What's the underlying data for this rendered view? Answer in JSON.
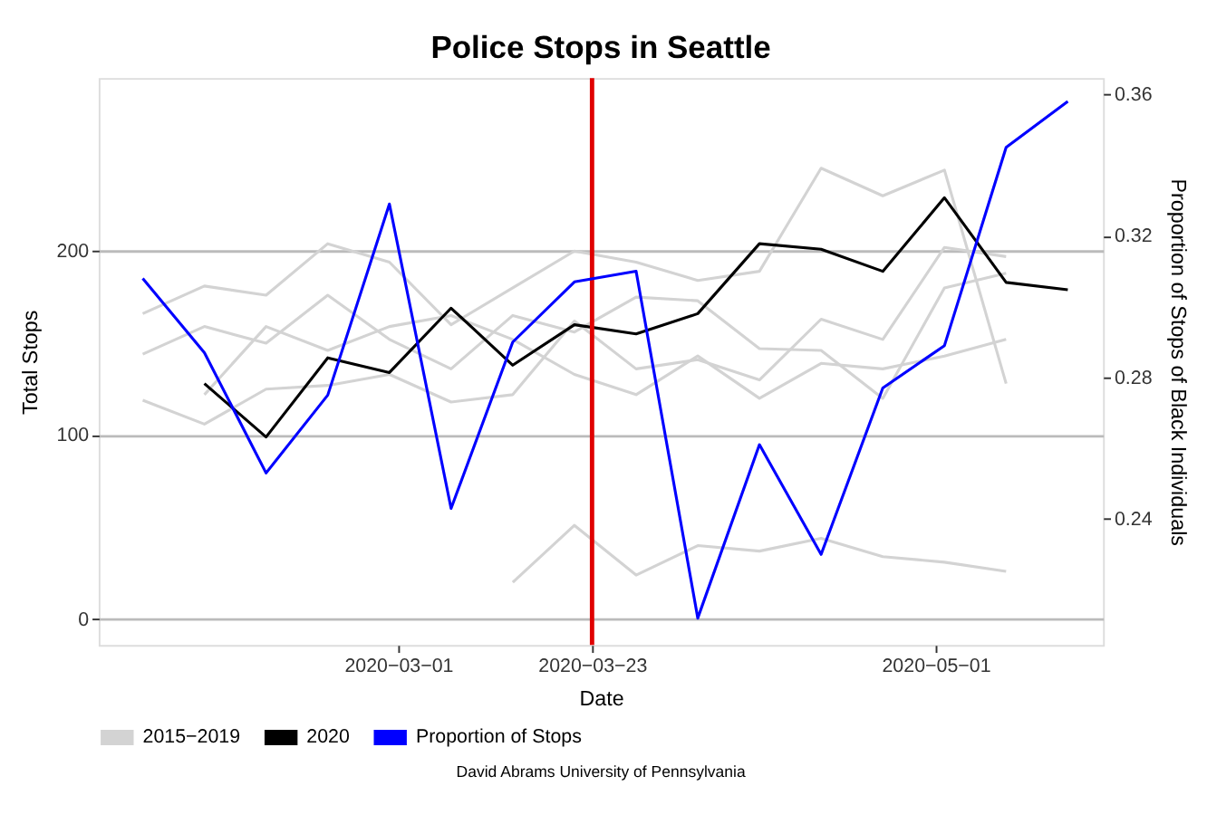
{
  "chart_data": {
    "type": "line",
    "title": "Police Stops in Seattle",
    "xlabel": "Date",
    "ylabel": "Total Stops",
    "y2label": "Proportion of Stops of Black Individuals",
    "xlim": [
      "2020-01-27",
      "2020-05-20"
    ],
    "xticks": [
      {
        "value": "2020-03-01",
        "label": "2020−03−01"
      },
      {
        "value": "2020-03-23",
        "label": "2020−03−23"
      },
      {
        "value": "2020-05-01",
        "label": "2020−05−01"
      }
    ],
    "ylim": [
      -14,
      294
    ],
    "yticks": [
      0,
      100,
      200
    ],
    "y2lim": [
      0.2044,
      0.3646
    ],
    "y2ticks": [
      0.24,
      0.28,
      0.32,
      0.36
    ],
    "grid": "y",
    "legend": "bottom",
    "line_style": "solid",
    "marker": "none",
    "series": [
      {
        "name": "2015−2019",
        "color": "#d3d3d3",
        "x": [
          "2020-02-01",
          "2020-02-08",
          "2020-02-15",
          "2020-02-22",
          "2020-02-29",
          "2020-03-07",
          "2020-03-14",
          "2020-03-21",
          "2020-03-28",
          "2020-04-04",
          "2020-04-11",
          "2020-04-18",
          "2020-04-25",
          "2020-05-02",
          "2020-05-09"
        ],
        "values": [
          166,
          181,
          176,
          204,
          194,
          160,
          180,
          200,
          194,
          184,
          189,
          245,
          230,
          244,
          128
        ]
      },
      {
        "color": "#d3d3d3",
        "x": [
          "2020-02-01",
          "2020-02-08",
          "2020-02-15",
          "2020-02-22",
          "2020-02-29",
          "2020-03-07",
          "2020-03-14",
          "2020-03-21",
          "2020-03-28",
          "2020-04-04",
          "2020-04-11",
          "2020-04-18",
          "2020-04-25",
          "2020-05-02",
          "2020-05-09"
        ],
        "values": [
          144,
          159,
          150,
          176,
          152,
          136,
          165,
          156,
          175,
          173,
          147,
          146,
          120,
          180,
          188
        ]
      },
      {
        "color": "#d3d3d3",
        "x": [
          "2020-02-01",
          "2020-02-08",
          "2020-02-15",
          "2020-02-22",
          "2020-02-29",
          "2020-03-07",
          "2020-03-14",
          "2020-03-21",
          "2020-03-28",
          "2020-04-04",
          "2020-04-11",
          "2020-04-18",
          "2020-04-25",
          "2020-05-02",
          "2020-05-09"
        ],
        "values": [
          119,
          106,
          125,
          127,
          133,
          118,
          122,
          162,
          136,
          141,
          130,
          163,
          152,
          202,
          197
        ]
      },
      {
        "color": "#d3d3d3",
        "x": [
          "2020-02-08",
          "2020-02-15",
          "2020-02-22",
          "2020-02-29",
          "2020-03-07",
          "2020-03-14",
          "2020-03-21",
          "2020-03-28",
          "2020-04-04",
          "2020-04-11",
          "2020-04-18",
          "2020-04-25",
          "2020-05-02",
          "2020-05-09"
        ],
        "values": [
          122,
          159,
          146,
          159,
          165,
          152,
          133,
          122,
          143,
          120,
          139,
          136,
          143,
          152
        ]
      },
      {
        "color": "#d3d3d3",
        "x": [
          "2020-03-14",
          "2020-03-21",
          "2020-03-28",
          "2020-04-04",
          "2020-04-11",
          "2020-04-18",
          "2020-04-25",
          "2020-05-02",
          "2020-05-09"
        ],
        "values": [
          20,
          51,
          24,
          40,
          37,
          44,
          34,
          31,
          26
        ]
      },
      {
        "name": "2020",
        "color": "#000000",
        "x": [
          "2020-02-08",
          "2020-02-15",
          "2020-02-22",
          "2020-02-29",
          "2020-03-07",
          "2020-03-14",
          "2020-03-21",
          "2020-03-28",
          "2020-04-04",
          "2020-04-11",
          "2020-04-18",
          "2020-04-25",
          "2020-05-02",
          "2020-05-09",
          "2020-05-16"
        ],
        "values": [
          128,
          99,
          142,
          134,
          169,
          138,
          160,
          155,
          166,
          204,
          201,
          189,
          229,
          183,
          179
        ]
      },
      {
        "name": "Proportion of Stops",
        "color": "#0000ff",
        "axis": "y2",
        "x": [
          "2020-02-01",
          "2020-02-08",
          "2020-02-15",
          "2020-02-22",
          "2020-02-29",
          "2020-03-07",
          "2020-03-14",
          "2020-03-21",
          "2020-03-28",
          "2020-04-04",
          "2020-04-11",
          "2020-04-18",
          "2020-04-25",
          "2020-05-02",
          "2020-05-09",
          "2020-05-16"
        ],
        "values": [
          0.308,
          0.287,
          0.253,
          0.275,
          0.329,
          0.243,
          0.29,
          0.307,
          0.31,
          0.212,
          0.261,
          0.23,
          0.277,
          0.289,
          0.345,
          0.358
        ]
      }
    ],
    "ref_lines": [
      {
        "axis": "x",
        "value": "2020-03-23",
        "color": "#e00000",
        "line_style": "solid"
      }
    ],
    "annotations": [
      "David Abrams University of Pennsylvania"
    ]
  }
}
